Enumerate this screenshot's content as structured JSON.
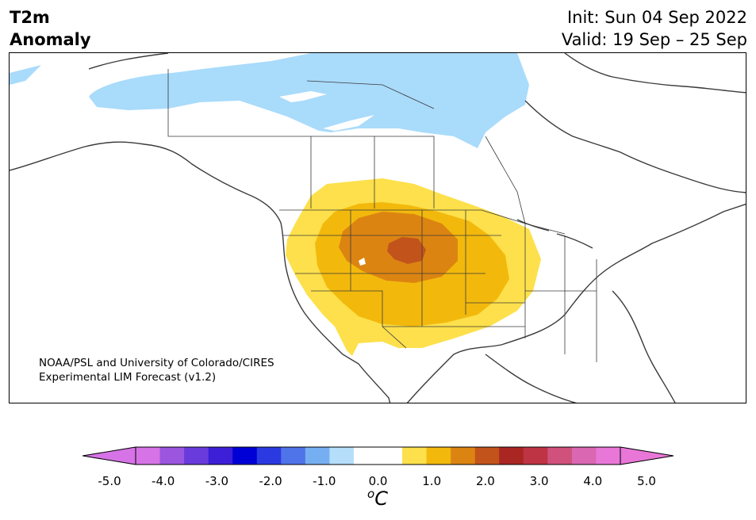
{
  "title": {
    "line1": "T2m",
    "line2": "Anomaly"
  },
  "header_right": {
    "init": "Init: Sun 04 Sep 2022",
    "valid": "Valid: 19 Sep – 25 Sep"
  },
  "credit": {
    "line1": "NOAA/PSL and University of Colorado/CIRES",
    "line2": "Experimental LIM Forecast (v1.2)"
  },
  "colorbar": {
    "unit_superscript": "o",
    "unit": "C",
    "ticks": [
      "-5.0",
      "-4.0",
      "-3.0",
      "-2.0",
      "-1.0",
      "0.0",
      "1.0",
      "2.0",
      "3.0",
      "4.0",
      "5.0"
    ],
    "colors": [
      "#d673e6",
      "#9b55df",
      "#6a3bdc",
      "#3c1fd6",
      "#0000d6",
      "#2a3ae0",
      "#4f74ea",
      "#76aff1",
      "#b5defa",
      "#ffffff",
      "#ffffff",
      "#fde04b",
      "#f2b90c",
      "#dc8412",
      "#c2541b",
      "#a92623",
      "#bf3444",
      "#d0527c",
      "#da67b2",
      "#e877d8"
    ],
    "over_color": "#e877d8",
    "under_color": "#d673e6"
  },
  "map": {
    "region": "North America",
    "legend_colors": {
      "negative_anomaly": "#a9dbfb",
      "warm_1": "#fde04b",
      "warm_2": "#f2b90c",
      "warm_3": "#dc8412",
      "warm_4": "#c2541b"
    }
  }
}
